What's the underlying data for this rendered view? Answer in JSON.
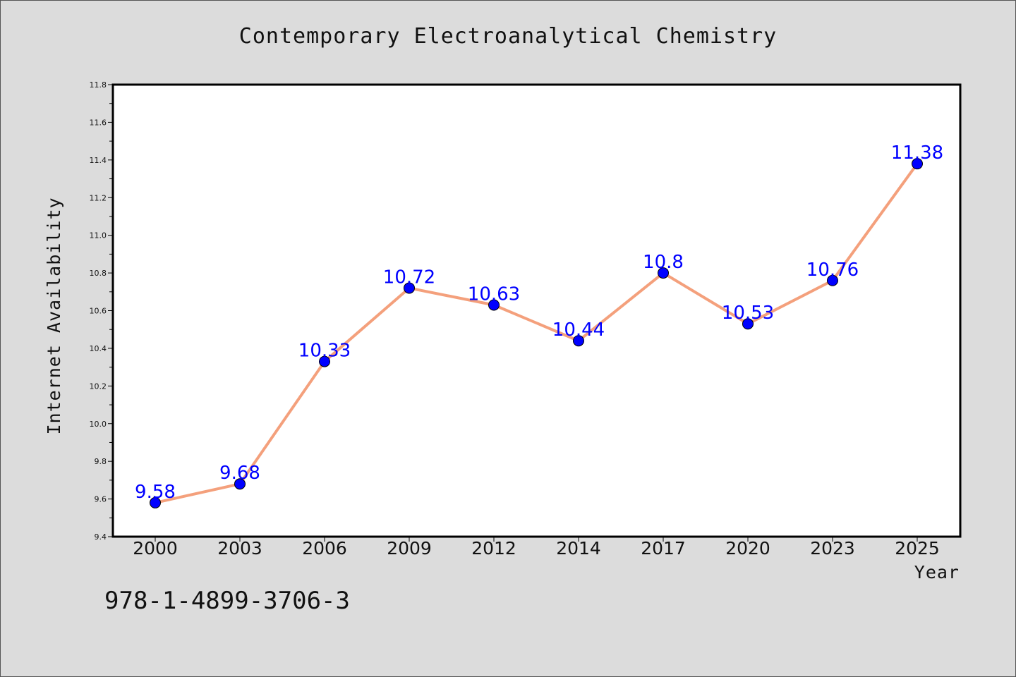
{
  "header": {
    "isbn": "978-1-4899-3706-3"
  },
  "chart_data": {
    "type": "line",
    "title": "Contemporary Electroanalytical Chemistry",
    "xlabel": "Year",
    "ylabel": "Internet Availability",
    "categories": [
      "2000",
      "2003",
      "2006",
      "2009",
      "2012",
      "2014",
      "2017",
      "2020",
      "2023",
      "2025"
    ],
    "series": [
      {
        "values": [
          9.58,
          9.68,
          10.33,
          10.72,
          10.63,
          10.44,
          10.8,
          10.53,
          10.76,
          11.38
        ],
        "data_labels": [
          "9.58",
          "9.68",
          "10.33",
          "10.72",
          "10.63",
          "10.44",
          "10.8",
          "10.53",
          "10.76",
          "11.38"
        ],
        "line_color": "#f4a07c",
        "marker_color": "#0000ff"
      }
    ],
    "ylim": [
      9.4,
      11.8
    ],
    "y_ticks": [
      "9.4",
      "9.6",
      "9.8",
      "10.0",
      "10.2",
      "10.4",
      "10.6",
      "10.8",
      "11.0",
      "11.2",
      "11.4",
      "11.6",
      "11.8"
    ],
    "grid": false,
    "legend": "none",
    "colors": {
      "background": "#dcdcdc",
      "plot_background": "#ffffff",
      "label_color": "#0000ff"
    }
  }
}
